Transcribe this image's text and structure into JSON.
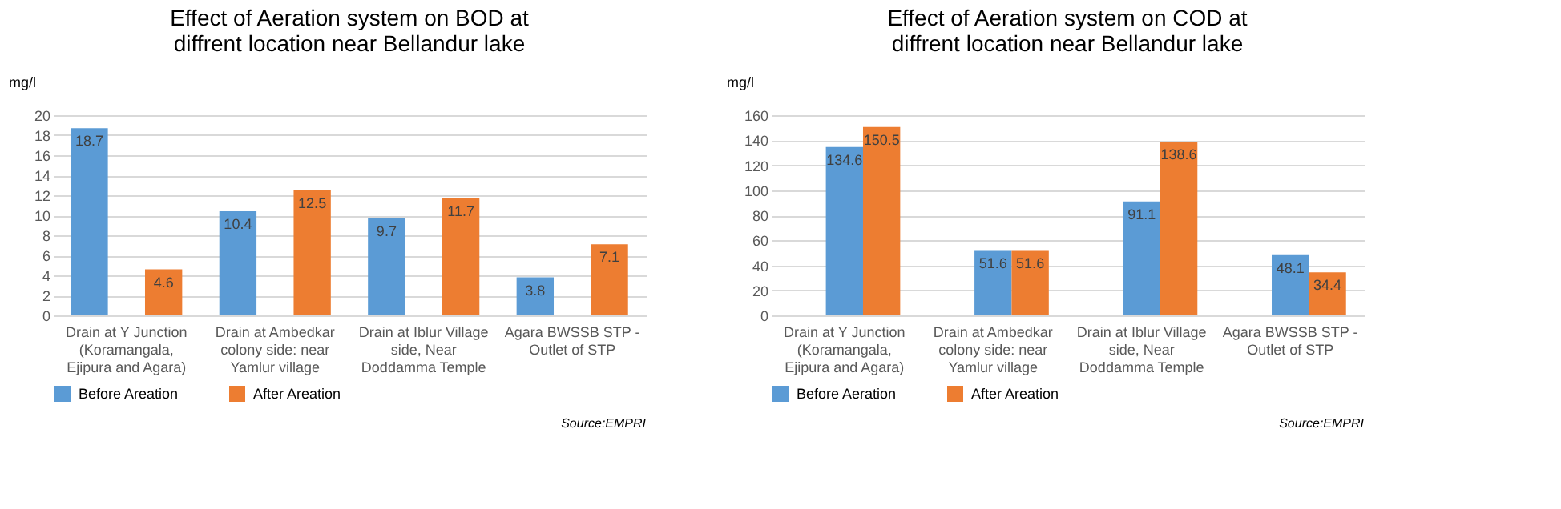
{
  "chart_data": [
    {
      "type": "bar",
      "title": "Effect of Aeration system on BOD at\ndiffrent location near Bellandur lake",
      "ylabel": "mg/l",
      "categories": [
        "Drain at Y Junction\n(Koramangala,\nEjipura and Agara)",
        "Drain at Ambedkar\ncolony side: near\nYamlur village",
        "Drain at Iblur Village\nside, Near\nDoddamma Temple",
        "Agara BWSSB STP -\nOutlet of STP"
      ],
      "series": [
        {
          "name": "Before Areation",
          "color": "#5b9bd5",
          "values": [
            18.7,
            10.4,
            9.7,
            3.8
          ]
        },
        {
          "name": "After Areation",
          "color": "#ed7d31",
          "values": [
            4.6,
            12.5,
            11.7,
            7.1
          ]
        }
      ],
      "ylim": [
        0,
        20
      ],
      "yticks": [
        0,
        2,
        4,
        6,
        8,
        10,
        12,
        14,
        16,
        18,
        20
      ],
      "grid": "y",
      "legend": "bottom",
      "data_labels": true,
      "annotations": [
        "Source:EMPRI"
      ]
    },
    {
      "type": "bar",
      "title": "Effect of Aeration system on COD at\ndiffrent location near Bellandur lake",
      "ylabel": "mg/l",
      "categories": [
        "Drain at Y Junction\n(Koramangala,\nEjipura and Agara)",
        "Drain at Ambedkar\ncolony side: near\nYamlur village",
        "Drain at Iblur Village\nside, Near\nDoddamma Temple",
        "Agara BWSSB STP -\nOutlet of STP"
      ],
      "series": [
        {
          "name": "Before Aeration",
          "color": "#5b9bd5",
          "values": [
            134.6,
            51.6,
            91.1,
            48.1
          ]
        },
        {
          "name": "After Areation",
          "color": "#ed7d31",
          "values": [
            150.5,
            51.6,
            138.6,
            34.4
          ]
        }
      ],
      "ylim": [
        0,
        160
      ],
      "yticks": [
        0,
        20,
        40,
        60,
        80,
        100,
        120,
        140,
        160
      ],
      "grid": "y",
      "legend": "bottom",
      "data_labels": true,
      "annotations": [
        "Source:EMPRI"
      ]
    }
  ]
}
